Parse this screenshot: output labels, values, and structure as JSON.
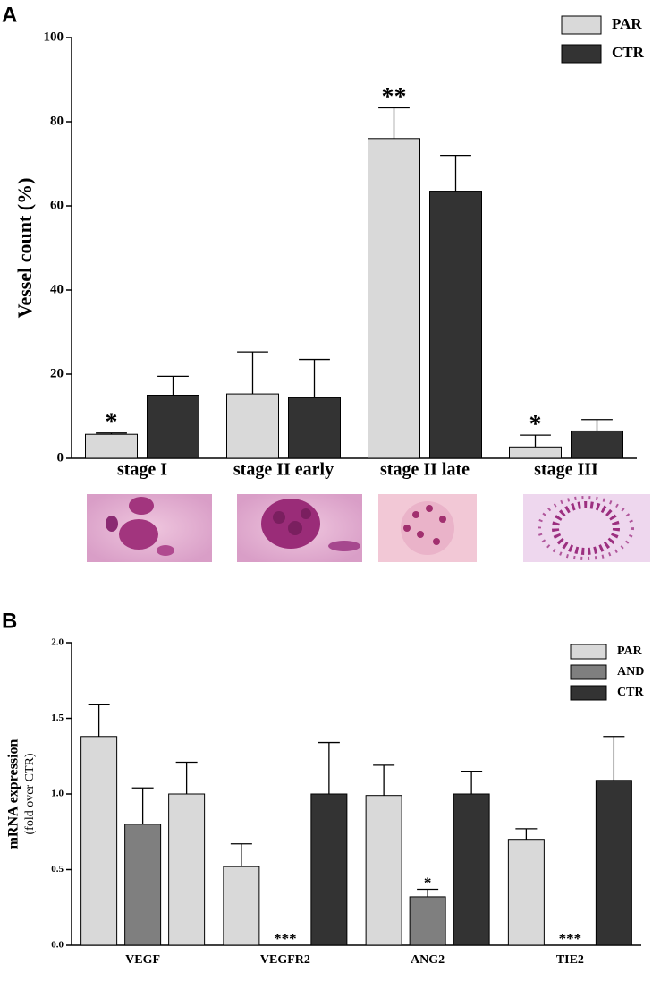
{
  "chart_data": [
    {
      "type": "bar",
      "panel_label": "A",
      "ylabel": "Vessel count (%)",
      "categories": [
        "stage I",
        "stage II early",
        "stage II late",
        "stage III"
      ],
      "series": [
        {
          "name": "PAR",
          "color": "#d9d9d9",
          "values": [
            5.7,
            15.3,
            76,
            2.7
          ],
          "errors": [
            0.3,
            10,
            7.3,
            2.8
          ],
          "annotations": [
            "*",
            null,
            "**",
            "*"
          ]
        },
        {
          "name": "CTR",
          "color": "#333333",
          "values": [
            15,
            14.4,
            63.5,
            6.5
          ],
          "errors": [
            4.5,
            9.1,
            8.5,
            2.7
          ]
        }
      ],
      "ylim": [
        0,
        100
      ],
      "yticks": [
        0,
        20,
        40,
        60,
        80,
        100
      ],
      "legend": "upper right"
    },
    {
      "type": "bar",
      "panel_label": "B",
      "ylabel": "mRNA expression",
      "ylabel_sub": "(fold over CTR)",
      "categories": [
        "VEGF",
        "VEGFR2",
        "ANG2",
        "TIE2"
      ],
      "series": [
        {
          "name": "PAR",
          "color": "#d9d9d9",
          "values": [
            1.38,
            0.52,
            0.99,
            0.7
          ],
          "errors": [
            0.21,
            0.15,
            0.2,
            0.07
          ]
        },
        {
          "name": "AND",
          "color": "#7f7f7f",
          "values": [
            0.8,
            0,
            0.32,
            0
          ],
          "errors": [
            0.24,
            null,
            0.05,
            null
          ],
          "annotations": [
            null,
            "***",
            "*",
            "***"
          ]
        },
        {
          "name": "CTR",
          "color": "#333333",
          "colors": [
            "#d9d9d9",
            "#333333",
            "#333333",
            "#333333"
          ],
          "values": [
            1.0,
            1.0,
            1.0,
            1.09
          ],
          "errors": [
            0.21,
            0.34,
            0.15,
            0.29
          ]
        }
      ],
      "ylim": [
        0,
        2
      ],
      "yticks": [
        {
          "value": 0,
          "label": "0.0"
        },
        {
          "value": 0.5,
          "label": "0.5"
        },
        {
          "value": 1,
          "label": "1.0"
        },
        {
          "value": 1.5,
          "label": "1.5"
        },
        {
          "value": 2,
          "label": "2.0"
        }
      ],
      "legend": "upper right"
    }
  ]
}
